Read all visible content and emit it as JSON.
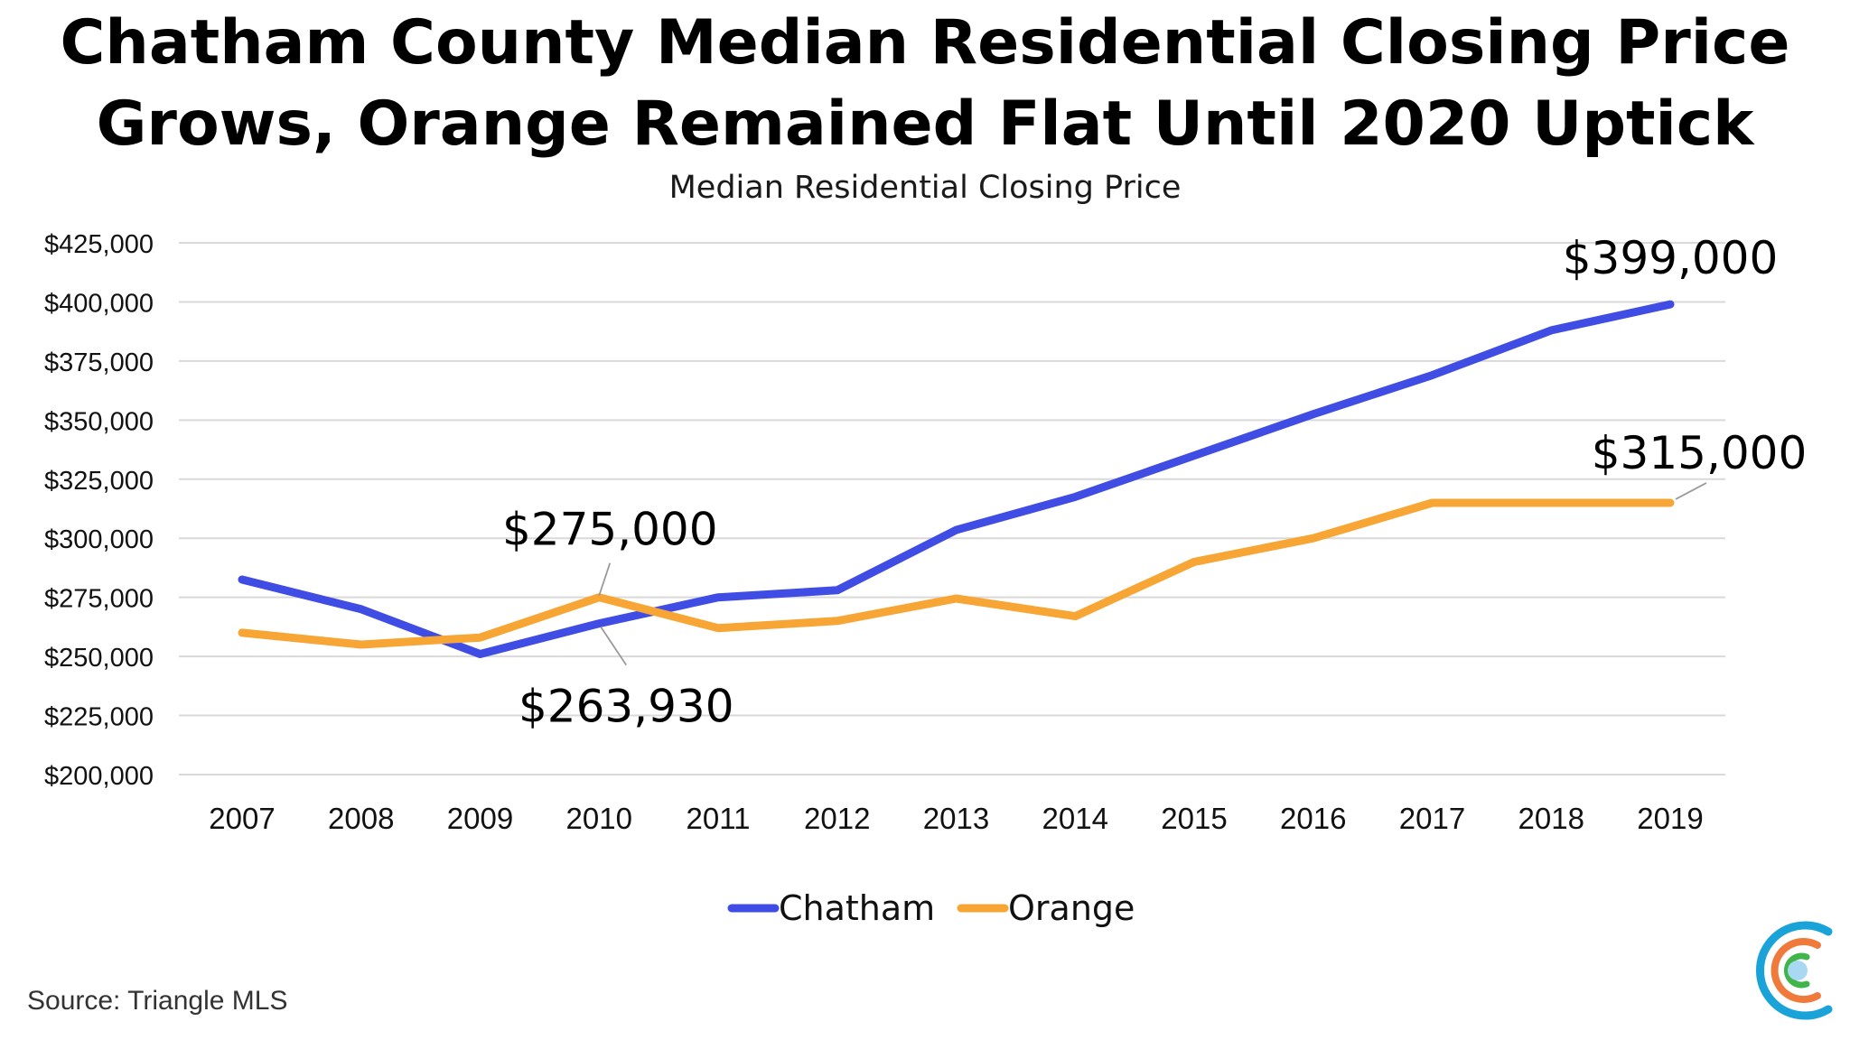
{
  "header": {
    "title_line_1": "Chatham County Median Residential Closing Price",
    "title_line_2": "Grows, Orange Remained Flat Until 2020 Uptick"
  },
  "chart_data": {
    "type": "line",
    "title": "Chatham County Median Residential Closing Price Grows, Orange Remained Flat Until 2020 Uptick",
    "subtitle": "Median Residential Closing Price",
    "x": [
      "2007",
      "2008",
      "2009",
      "2010",
      "2011",
      "2012",
      "2013",
      "2014",
      "2015",
      "2016",
      "2017",
      "2018",
      "2019"
    ],
    "series": [
      {
        "name": "Chatham",
        "color": "#3f4de4",
        "values": [
          282500,
          270000,
          251000,
          263930,
          275000,
          278000,
          303500,
          317500,
          335000,
          352500,
          369000,
          388000,
          399000
        ]
      },
      {
        "name": "Orange",
        "color": "#f7a534",
        "values": [
          260000,
          255000,
          258000,
          275000,
          262000,
          265000,
          274500,
          267000,
          290000,
          300000,
          315000,
          315000,
          315000
        ]
      }
    ],
    "y_ticks": [
      "$425,000",
      "$400,000",
      "$375,000",
      "$350,000",
      "$325,000",
      "$300,000",
      "$275,000",
      "$250,000",
      "$225,000",
      "$200,000"
    ],
    "ylim": [
      200000,
      425000
    ],
    "ystep": 25000,
    "grid": true,
    "legend_position": "bottom",
    "annotations": [
      {
        "label": "$399,000",
        "series": 0,
        "index": 12
      },
      {
        "label": "$315,000",
        "series": 1,
        "index": 12
      },
      {
        "label": "$275,000",
        "series": 1,
        "index": 3
      },
      {
        "label": "$263,930",
        "series": 0,
        "index": 3
      }
    ]
  },
  "footer": {
    "source": "Source: Triangle MLS"
  },
  "colors": {
    "grid": "#d9d9d9",
    "logo_blue": "#1aa3d9",
    "logo_orange": "#f07a3c",
    "logo_green": "#3fb54a",
    "logo_dot": "#a9d8f2"
  }
}
